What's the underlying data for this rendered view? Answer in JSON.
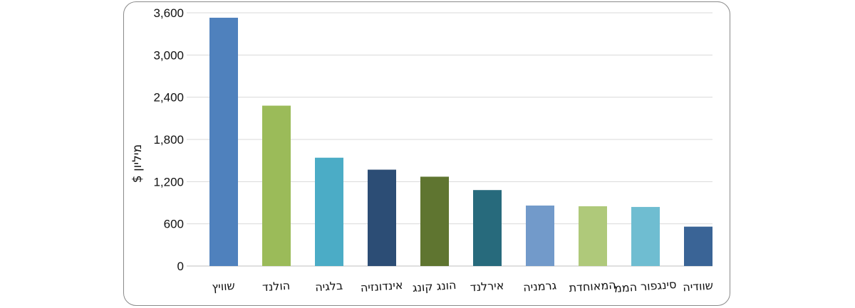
{
  "chart_data": {
    "type": "bar",
    "title": "",
    "xlabel": "",
    "ylabel": "מיליון $",
    "ylim": [
      0,
      3600
    ],
    "yticks": [
      0,
      600,
      1200,
      1800,
      2400,
      3000,
      3600
    ],
    "ytick_labels": [
      "0",
      "600",
      "1,200",
      "1,800",
      "2,400",
      "3,000",
      "3,600"
    ],
    "grid": true,
    "legend": "none",
    "categories": [
      "שוויץ",
      "הולנד",
      "בלגיה",
      "אינדונזיה",
      "הונג קונג",
      "אירלנד",
      "גרמניה",
      "המאוחדת",
      "סינגפור הממ",
      "שוודיה"
    ],
    "values": [
      3530,
      2280,
      1540,
      1370,
      1270,
      1080,
      860,
      850,
      840,
      560
    ],
    "colors": [
      "#4f81bd",
      "#9bbb59",
      "#4bacc6",
      "#2c4d75",
      "#5f7530",
      "#276a7c",
      "#729aca",
      "#afc97a",
      "#6fbdd1",
      "#3a6496"
    ]
  }
}
